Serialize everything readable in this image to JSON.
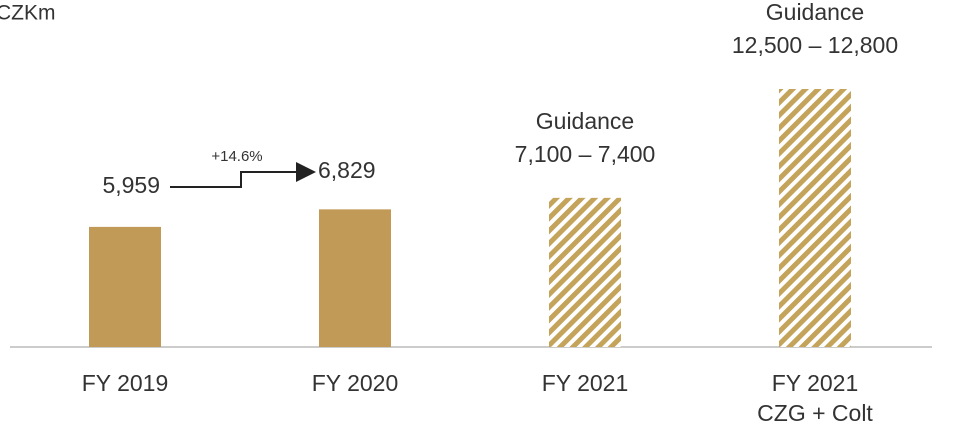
{
  "chart_data": {
    "type": "bar",
    "unit": "CZKm",
    "categories": [
      [
        "FY 2019"
      ],
      [
        "FY 2020"
      ],
      [
        "FY 2021"
      ],
      [
        "FY 2021",
        "CZG + Colt"
      ]
    ],
    "values": [
      5959,
      6829,
      null,
      null
    ],
    "value_labels": [
      "5,959",
      "6,829",
      null,
      null
    ],
    "guidance": [
      null,
      null,
      {
        "title": "Guidance",
        "low": 7100,
        "high": 7400,
        "label": "7,100 – 7,400"
      },
      {
        "title": "Guidance",
        "low": 12500,
        "high": 12800,
        "label": "12,500 – 12,800"
      }
    ],
    "annotation": "+14.6%",
    "color": "#c19a57"
  }
}
